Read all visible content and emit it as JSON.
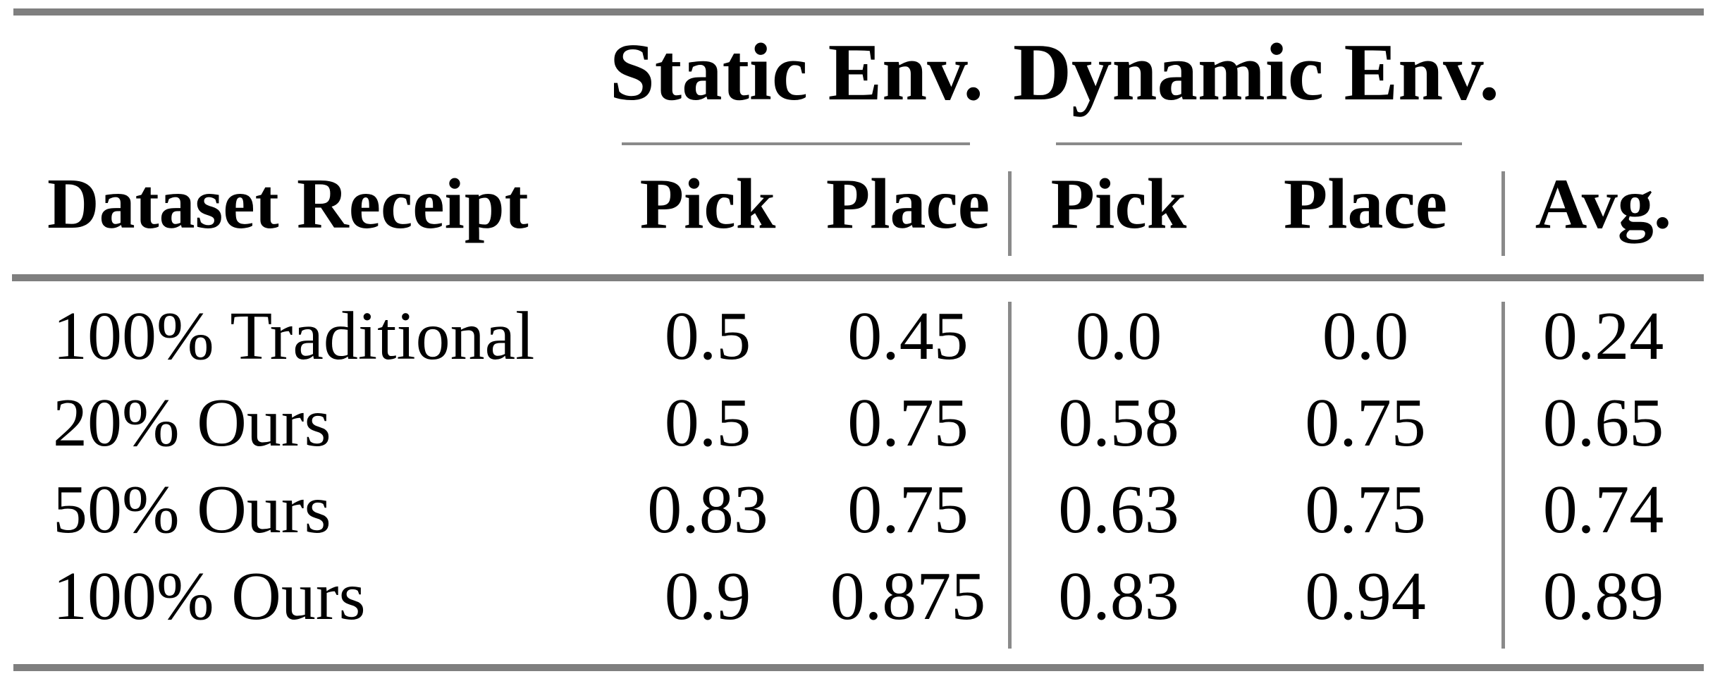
{
  "colors": {
    "rule_thick": "#7f7f7f",
    "rule_thin": "#8a8a8a",
    "text": "#000000",
    "background": "#ffffff"
  },
  "table": {
    "groups": {
      "static": {
        "label": "Static Env."
      },
      "dynamic": {
        "label": "Dynamic Env."
      }
    },
    "header": {
      "row_label": "Dataset Receipt",
      "static_pick": "Pick",
      "static_place": "Place",
      "dynamic_pick": "Pick",
      "dynamic_place": "Place",
      "avg": "Avg."
    },
    "rows": [
      [
        "100% Traditional",
        "0.5",
        "0.45",
        "0.0",
        "0.0",
        "0.24"
      ],
      [
        "20% Ours",
        "0.5",
        "0.75",
        "0.58",
        "0.75",
        "0.65"
      ],
      [
        "50% Ours",
        "0.83",
        "0.75",
        "0.63",
        "0.75",
        "0.74"
      ],
      [
        "100% Ours",
        "0.9",
        "0.875",
        "0.83",
        "0.94",
        "0.89"
      ]
    ]
  },
  "chart_data": {
    "type": "table",
    "title": "",
    "column_groups": [
      "",
      "Static Env.",
      "Static Env.",
      "Dynamic Env.",
      "Dynamic Env.",
      ""
    ],
    "columns": [
      "Dataset Receipt",
      "Pick",
      "Place",
      "Pick",
      "Place",
      "Avg."
    ],
    "rows": [
      {
        "dataset_receipt": "100% Traditional",
        "static_pick": 0.5,
        "static_place": 0.45,
        "dynamic_pick": 0.0,
        "dynamic_place": 0.0,
        "avg": 0.24
      },
      {
        "dataset_receipt": "20% Ours",
        "static_pick": 0.5,
        "static_place": 0.75,
        "dynamic_pick": 0.58,
        "dynamic_place": 0.75,
        "avg": 0.65
      },
      {
        "dataset_receipt": "50% Ours",
        "static_pick": 0.83,
        "static_place": 0.75,
        "dynamic_pick": 0.63,
        "dynamic_place": 0.75,
        "avg": 0.74
      },
      {
        "dataset_receipt": "100% Ours",
        "static_pick": 0.9,
        "static_place": 0.875,
        "dynamic_pick": 0.83,
        "dynamic_place": 0.94,
        "avg": 0.89
      }
    ]
  }
}
